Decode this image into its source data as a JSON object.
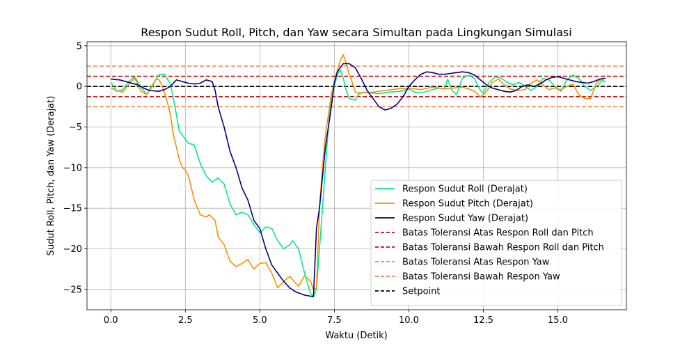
{
  "chart_data": {
    "type": "line",
    "title": "Respon Sudut Roll, Pitch, dan Yaw secara Simultan pada Lingkungan Simulasi",
    "xlabel": "Waktu (Detik)",
    "ylabel": "Sudut Roll, Pitch, dan Yaw (Derajat)",
    "xlim": [
      -0.8,
      17.3
    ],
    "ylim": [
      -27.5,
      5.5
    ],
    "xticks": [
      0.0,
      2.5,
      5.0,
      7.5,
      10.0,
      12.5,
      15.0
    ],
    "xtick_labels": [
      "0.0",
      "2.5",
      "5.0",
      "7.5",
      "10.0",
      "12.5",
      "15.0"
    ],
    "yticks": [
      -25,
      -20,
      -15,
      -10,
      -5,
      0,
      5
    ],
    "ytick_labels": [
      "−25",
      "−20",
      "−15",
      "−10",
      "−5",
      "0",
      "5"
    ],
    "grid": true,
    "legend_position": "lower-right",
    "series": [
      {
        "name": "Respon Sudut Roll (Derajat)",
        "color": "#00ee80",
        "style": "solid",
        "points": [
          [
            0.0,
            0.5
          ],
          [
            0.2,
            -0.6
          ],
          [
            0.4,
            -0.4
          ],
          [
            0.6,
            0.6
          ],
          [
            0.8,
            1.2
          ],
          [
            1.0,
            0.0
          ],
          [
            1.2,
            -1.0
          ],
          [
            1.4,
            0.2
          ],
          [
            1.6,
            1.4
          ],
          [
            1.8,
            1.5
          ],
          [
            2.0,
            0.3
          ],
          [
            2.1,
            -1.5
          ],
          [
            2.2,
            -3.5
          ],
          [
            2.3,
            -5.5
          ],
          [
            2.5,
            -6.5
          ],
          [
            2.6,
            -7.0
          ],
          [
            2.8,
            -7.2
          ],
          [
            3.0,
            -9.5
          ],
          [
            3.2,
            -11.0
          ],
          [
            3.4,
            -11.8
          ],
          [
            3.5,
            -11.5
          ],
          [
            3.6,
            -11.3
          ],
          [
            3.8,
            -12.0
          ],
          [
            4.0,
            -14.5
          ],
          [
            4.2,
            -15.8
          ],
          [
            4.4,
            -15.5
          ],
          [
            4.6,
            -15.8
          ],
          [
            4.8,
            -17.0
          ],
          [
            5.0,
            -18.0
          ],
          [
            5.2,
            -17.3
          ],
          [
            5.4,
            -17.5
          ],
          [
            5.6,
            -19.0
          ],
          [
            5.8,
            -20.0
          ],
          [
            6.0,
            -19.5
          ],
          [
            6.1,
            -19.0
          ],
          [
            6.3,
            -20.0
          ],
          [
            6.5,
            -23.0
          ],
          [
            6.7,
            -25.5
          ],
          [
            6.8,
            -25.9
          ],
          [
            6.9,
            -25.0
          ],
          [
            7.0,
            -20.0
          ],
          [
            7.1,
            -15.0
          ],
          [
            7.2,
            -10.0
          ],
          [
            7.3,
            -5.0
          ],
          [
            7.4,
            -1.5
          ],
          [
            7.5,
            0.0
          ],
          [
            7.6,
            1.5
          ],
          [
            7.7,
            2.0
          ],
          [
            7.8,
            1.0
          ],
          [
            7.9,
            -0.5
          ],
          [
            8.0,
            -1.5
          ],
          [
            8.2,
            -1.7
          ],
          [
            8.3,
            -1.0
          ],
          [
            8.5,
            -0.7
          ],
          [
            8.7,
            -0.8
          ],
          [
            9.0,
            -0.9
          ],
          [
            9.3,
            -0.7
          ],
          [
            9.7,
            -0.6
          ],
          [
            10.0,
            -0.3
          ],
          [
            10.2,
            -0.7
          ],
          [
            10.4,
            -0.8
          ],
          [
            10.7,
            -0.5
          ],
          [
            11.0,
            -0.2
          ],
          [
            11.2,
            -0.3
          ],
          [
            11.3,
            0.9
          ],
          [
            11.45,
            -0.5
          ],
          [
            11.6,
            -1.0
          ],
          [
            11.8,
            1.0
          ],
          [
            12.0,
            1.4
          ],
          [
            12.2,
            1.0
          ],
          [
            12.4,
            -0.5
          ],
          [
            12.5,
            -0.8
          ],
          [
            12.7,
            0.5
          ],
          [
            12.9,
            1.2
          ],
          [
            13.1,
            1.0
          ],
          [
            13.3,
            0.5
          ],
          [
            13.5,
            0.2
          ],
          [
            13.7,
            0.5
          ],
          [
            13.9,
            0.0
          ],
          [
            14.1,
            -0.5
          ],
          [
            14.3,
            0.0
          ],
          [
            14.5,
            1.0
          ],
          [
            14.7,
            0.8
          ],
          [
            14.9,
            0.0
          ],
          [
            15.1,
            -0.6
          ],
          [
            15.3,
            0.8
          ],
          [
            15.5,
            1.4
          ],
          [
            15.7,
            1.0
          ],
          [
            15.9,
            0.0
          ],
          [
            16.1,
            -0.5
          ],
          [
            16.3,
            0.0
          ],
          [
            16.5,
            0.8
          ],
          [
            16.6,
            0.5
          ]
        ]
      },
      {
        "name": "Respon Sudut Pitch (Derajat)",
        "color": "#ff8c00",
        "style": "solid",
        "points": [
          [
            0.0,
            -0.2
          ],
          [
            0.2,
            -0.5
          ],
          [
            0.4,
            -0.7
          ],
          [
            0.6,
            0.2
          ],
          [
            0.8,
            1.0
          ],
          [
            1.0,
            -0.5
          ],
          [
            1.1,
            -0.8
          ],
          [
            1.2,
            -1.0
          ],
          [
            1.4,
            0.0
          ],
          [
            1.5,
            0.8
          ],
          [
            1.6,
            0.9
          ],
          [
            1.7,
            0.3
          ],
          [
            1.8,
            -0.8
          ],
          [
            1.9,
            -2.0
          ],
          [
            2.0,
            -3.5
          ],
          [
            2.1,
            -6.0
          ],
          [
            2.2,
            -7.5
          ],
          [
            2.3,
            -9.0
          ],
          [
            2.4,
            -10.0
          ],
          [
            2.5,
            -10.3
          ],
          [
            2.6,
            -11.0
          ],
          [
            2.7,
            -12.5
          ],
          [
            2.8,
            -14.0
          ],
          [
            3.0,
            -15.8
          ],
          [
            3.2,
            -16.1
          ],
          [
            3.3,
            -15.8
          ],
          [
            3.5,
            -16.5
          ],
          [
            3.6,
            -18.5
          ],
          [
            3.8,
            -19.5
          ],
          [
            4.0,
            -21.5
          ],
          [
            4.2,
            -22.2
          ],
          [
            4.4,
            -21.8
          ],
          [
            4.6,
            -21.3
          ],
          [
            4.8,
            -22.5
          ],
          [
            5.0,
            -21.8
          ],
          [
            5.2,
            -21.7
          ],
          [
            5.4,
            -23.0
          ],
          [
            5.6,
            -24.8
          ],
          [
            5.8,
            -24.0
          ],
          [
            6.0,
            -23.4
          ],
          [
            6.2,
            -24.2
          ],
          [
            6.3,
            -24.6
          ],
          [
            6.5,
            -23.3
          ],
          [
            6.7,
            -24.0
          ],
          [
            6.8,
            -25.0
          ],
          [
            6.9,
            -24.8
          ],
          [
            7.0,
            -15.0
          ],
          [
            7.1,
            -10.0
          ],
          [
            7.2,
            -6.0
          ],
          [
            7.3,
            -3.5
          ],
          [
            7.4,
            -1.0
          ],
          [
            7.5,
            0.5
          ],
          [
            7.6,
            2.0
          ],
          [
            7.7,
            3.2
          ],
          [
            7.8,
            3.9
          ],
          [
            7.9,
            2.8
          ],
          [
            8.0,
            1.5
          ],
          [
            8.1,
            0.5
          ],
          [
            8.2,
            -0.7
          ],
          [
            8.4,
            -0.8
          ],
          [
            8.8,
            -0.7
          ],
          [
            9.2,
            -0.5
          ],
          [
            9.6,
            -0.3
          ],
          [
            10.0,
            -0.2
          ],
          [
            10.4,
            -0.4
          ],
          [
            10.8,
            -0.1
          ],
          [
            11.2,
            -0.3
          ],
          [
            11.5,
            -0.2
          ],
          [
            11.8,
            -0.1
          ],
          [
            12.0,
            -0.3
          ],
          [
            12.2,
            -0.6
          ],
          [
            12.4,
            -1.3
          ],
          [
            12.6,
            -0.7
          ],
          [
            12.8,
            0.5
          ],
          [
            13.0,
            0.9
          ],
          [
            13.2,
            0.2
          ],
          [
            13.4,
            -0.3
          ],
          [
            13.7,
            -0.5
          ],
          [
            13.9,
            -0.4
          ],
          [
            14.1,
            0.4
          ],
          [
            14.3,
            0.8
          ],
          [
            14.5,
            0.2
          ],
          [
            14.7,
            -0.4
          ],
          [
            14.9,
            -0.2
          ],
          [
            15.1,
            -0.4
          ],
          [
            15.3,
            0.0
          ],
          [
            15.5,
            0.3
          ],
          [
            15.7,
            -1.0
          ],
          [
            15.9,
            -1.5
          ],
          [
            16.1,
            -1.5
          ],
          [
            16.3,
            0.5
          ],
          [
            16.5,
            1.0
          ],
          [
            16.6,
            1.0
          ]
        ]
      },
      {
        "name": "Respon Sudut Yaw (Derajat)",
        "color": "#000080",
        "style": "solid",
        "points": [
          [
            0.0,
            0.9
          ],
          [
            0.3,
            0.8
          ],
          [
            0.6,
            0.5
          ],
          [
            0.9,
            0.2
          ],
          [
            1.1,
            -0.2
          ],
          [
            1.3,
            -0.5
          ],
          [
            1.6,
            -0.6
          ],
          [
            1.8,
            -0.4
          ],
          [
            2.0,
            0.0
          ],
          [
            2.2,
            0.8
          ],
          [
            2.4,
            0.6
          ],
          [
            2.6,
            0.4
          ],
          [
            2.8,
            0.3
          ],
          [
            3.0,
            0.4
          ],
          [
            3.2,
            0.8
          ],
          [
            3.4,
            0.6
          ],
          [
            3.5,
            -0.5
          ],
          [
            3.6,
            -2.5
          ],
          [
            3.8,
            -5.0
          ],
          [
            4.0,
            -8.0
          ],
          [
            4.2,
            -10.0
          ],
          [
            4.4,
            -12.5
          ],
          [
            4.6,
            -14.0
          ],
          [
            4.8,
            -16.5
          ],
          [
            5.0,
            -17.5
          ],
          [
            5.2,
            -20.0
          ],
          [
            5.4,
            -22.0
          ],
          [
            5.6,
            -23.0
          ],
          [
            5.8,
            -24.0
          ],
          [
            6.0,
            -24.8
          ],
          [
            6.2,
            -25.3
          ],
          [
            6.5,
            -25.7
          ],
          [
            6.8,
            -25.9
          ],
          [
            6.9,
            -17.5
          ],
          [
            7.0,
            -15.0
          ],
          [
            7.2,
            -7.5
          ],
          [
            7.3,
            -5.0
          ],
          [
            7.4,
            -2.5
          ],
          [
            7.5,
            0.5
          ],
          [
            7.6,
            1.8
          ],
          [
            7.8,
            2.8
          ],
          [
            8.0,
            2.8
          ],
          [
            8.2,
            2.3
          ],
          [
            8.4,
            1.0
          ],
          [
            8.6,
            -0.5
          ],
          [
            8.8,
            -1.5
          ],
          [
            9.0,
            -2.5
          ],
          [
            9.2,
            -2.9
          ],
          [
            9.4,
            -2.7
          ],
          [
            9.6,
            -2.2
          ],
          [
            9.8,
            -1.3
          ],
          [
            10.0,
            0.0
          ],
          [
            10.2,
            0.8
          ],
          [
            10.4,
            1.5
          ],
          [
            10.6,
            1.8
          ],
          [
            10.8,
            1.7
          ],
          [
            11.0,
            1.5
          ],
          [
            11.2,
            1.5
          ],
          [
            11.4,
            1.6
          ],
          [
            11.6,
            1.7
          ],
          [
            11.8,
            1.8
          ],
          [
            12.0,
            1.7
          ],
          [
            12.2,
            1.4
          ],
          [
            12.4,
            0.8
          ],
          [
            12.6,
            0.2
          ],
          [
            12.8,
            -0.2
          ],
          [
            13.0,
            -0.4
          ],
          [
            13.2,
            -0.6
          ],
          [
            13.4,
            -0.7
          ],
          [
            13.6,
            -0.5
          ],
          [
            13.8,
            0.0
          ],
          [
            14.0,
            0.2
          ],
          [
            14.2,
            0.0
          ],
          [
            14.4,
            0.3
          ],
          [
            14.6,
            0.8
          ],
          [
            14.8,
            1.1
          ],
          [
            15.0,
            1.2
          ],
          [
            15.2,
            1.0
          ],
          [
            15.4,
            0.8
          ],
          [
            15.6,
            0.6
          ],
          [
            15.8,
            0.5
          ],
          [
            16.0,
            0.4
          ],
          [
            16.2,
            0.6
          ],
          [
            16.4,
            0.9
          ],
          [
            16.6,
            1.0
          ]
        ]
      },
      {
        "name": "Batas Toleransi Atas Respon Roll dan Pitch",
        "color": "#dd0000",
        "style": "dashed",
        "y": 1.25
      },
      {
        "name": "Batas Toleransi Bawah Respon Roll dan Pitch",
        "color": "#dd0000",
        "style": "dashed",
        "y": -1.25
      },
      {
        "name": "Batas Toleransi Atas Respon Yaw",
        "color": "#ff7f50",
        "style": "dashed",
        "y": 2.5
      },
      {
        "name": "Batas Toleransi Bawah Respon Yaw",
        "color": "#ff7f50",
        "style": "dashed",
        "y": -2.5
      },
      {
        "name": "Setpoint",
        "color": "#000000",
        "style": "dashed",
        "y": 0
      }
    ]
  }
}
